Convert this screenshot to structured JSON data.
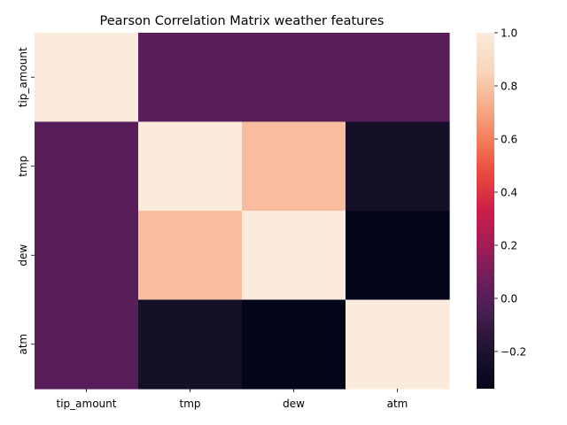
{
  "chart_data": {
    "type": "heatmap",
    "title": "Pearson Correlation Matrix weather features",
    "xlabel": "",
    "ylabel": "",
    "x_categories": [
      "tip_amount",
      "tmp",
      "dew",
      "atm"
    ],
    "y_categories": [
      "tip_amount",
      "tmp",
      "dew",
      "atm"
    ],
    "values": [
      [
        1.0,
        0.0,
        0.0,
        0.0
      ],
      [
        0.0,
        1.0,
        0.78,
        -0.24
      ],
      [
        0.0,
        0.78,
        1.0,
        -0.34
      ],
      [
        0.0,
        -0.24,
        -0.34,
        1.0
      ]
    ],
    "colorbar": {
      "colormap": "rocket",
      "range": [
        -0.34,
        1.0
      ],
      "ticks": [
        -0.2,
        0.0,
        0.2,
        0.4,
        0.6,
        0.8,
        1.0
      ],
      "tick_labels": [
        "−0.2",
        "0.0",
        "0.2",
        "0.4",
        "0.6",
        "0.8",
        "1.0"
      ]
    },
    "grid": false
  }
}
